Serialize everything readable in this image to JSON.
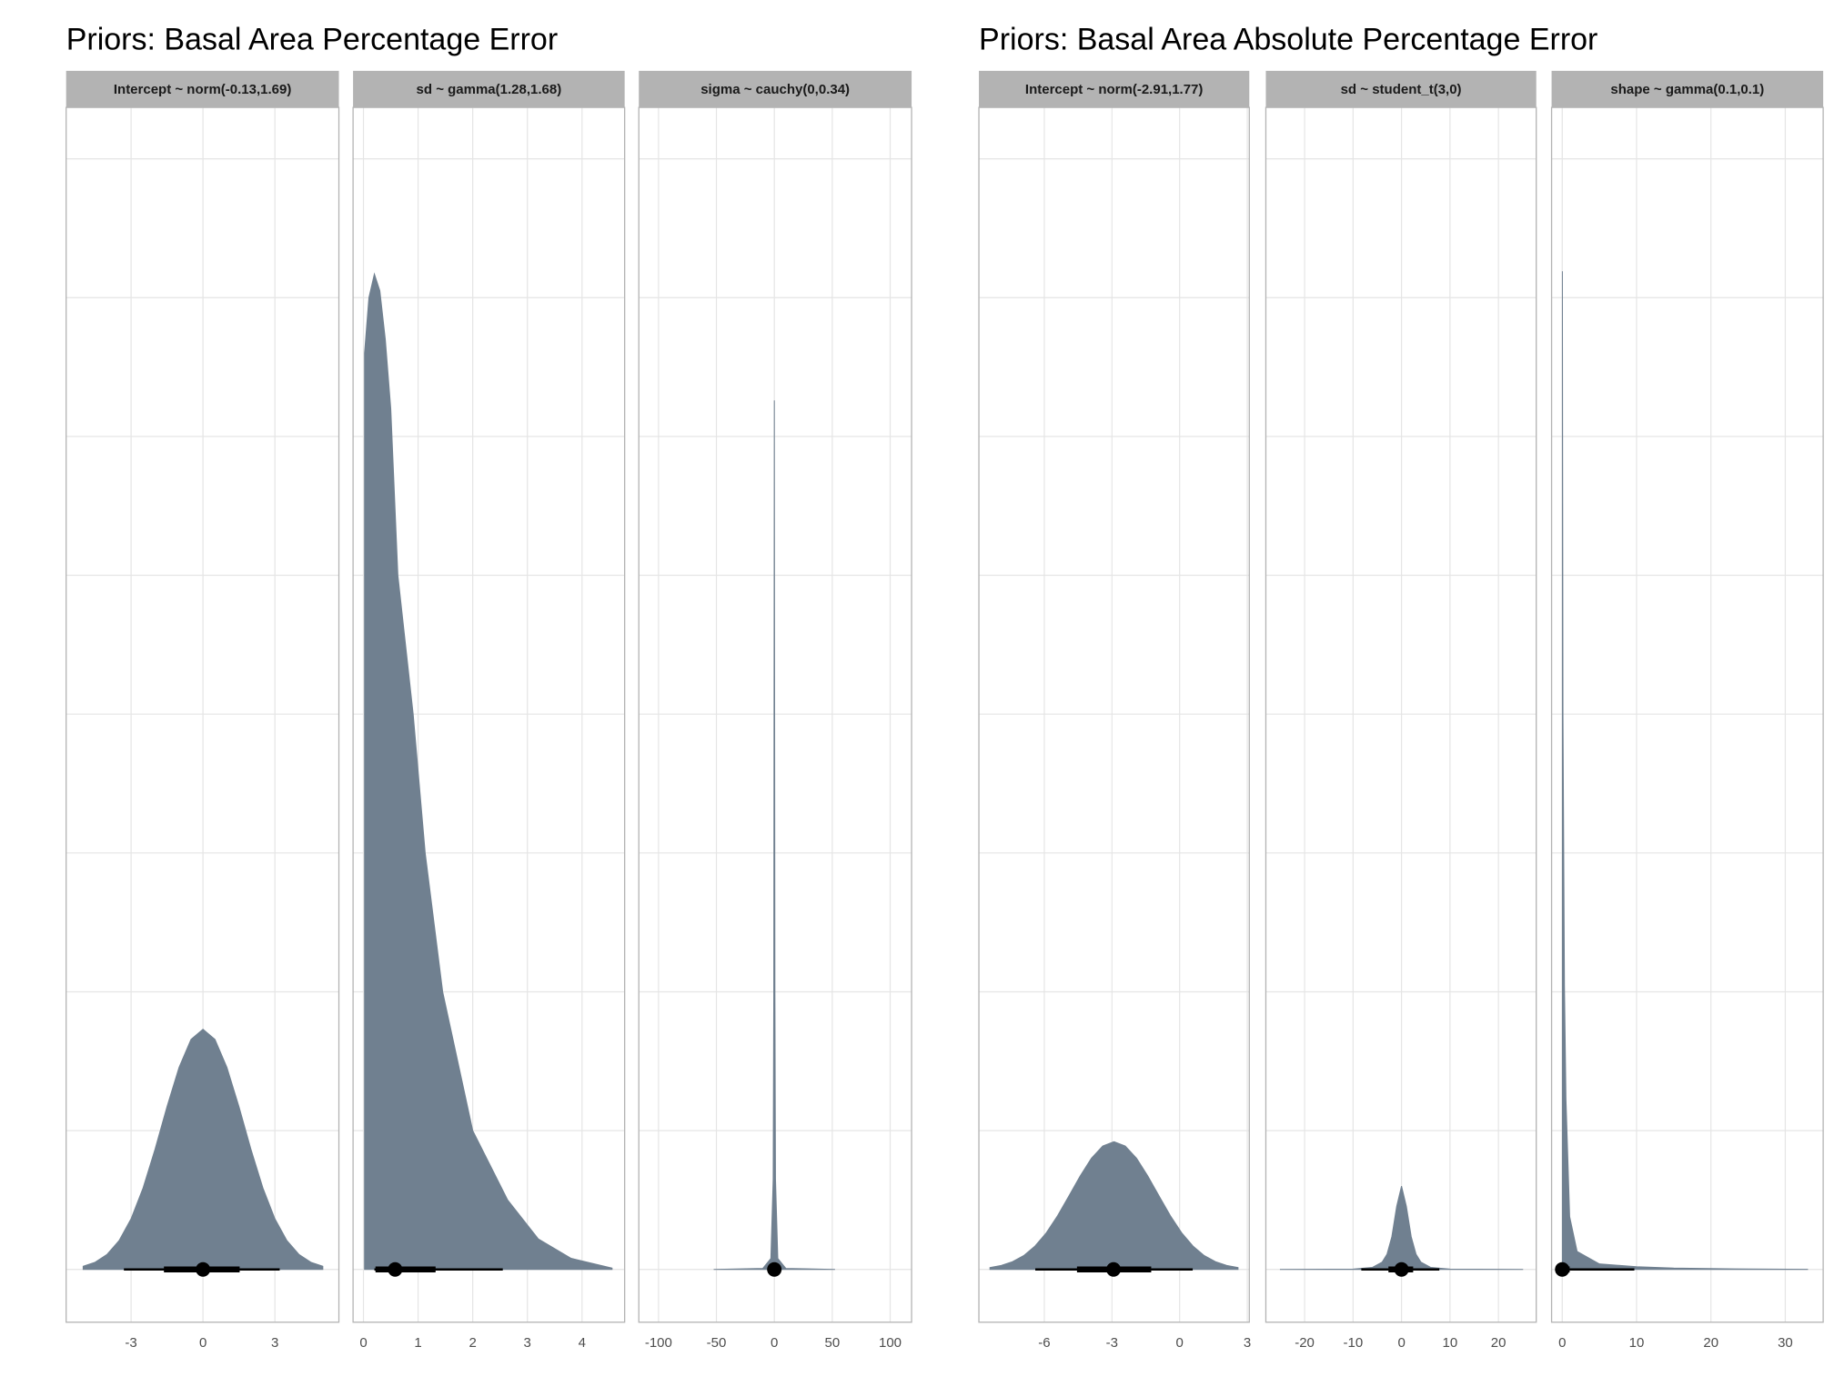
{
  "chart_data": [
    {
      "type": "density",
      "title": "Priors: Basal Area Percentage Error",
      "color": "#708090",
      "ylim": [
        -0.38,
        8.37
      ],
      "ygrid": [
        0,
        1,
        2,
        3,
        4,
        5,
        6,
        7,
        8
      ],
      "panels": [
        {
          "title": "Intercept ~ norm(-0.13,1.69)",
          "xlim": [
            -5.71,
            5.67
          ],
          "xticks": [
            -3,
            0,
            3
          ],
          "x": [
            -5,
            -4.5,
            -4,
            -3.5,
            -3,
            -2.5,
            -2,
            -1.5,
            -1,
            -0.5,
            0,
            0.5,
            1,
            1.5,
            2,
            2.5,
            3,
            3.5,
            4,
            4.5,
            5
          ],
          "values": [
            0.023,
            0.052,
            0.109,
            0.208,
            0.365,
            0.587,
            0.866,
            1.173,
            1.455,
            1.657,
            1.73,
            1.657,
            1.455,
            1.173,
            0.866,
            0.587,
            0.365,
            0.208,
            0.109,
            0.052,
            0.023
          ],
          "point": 0,
          "inner_interval": [
            -1.63,
            1.53
          ],
          "outer_interval": [
            -3.3,
            3.2
          ]
        },
        {
          "title": "sd ~ gamma(1.28,1.68)",
          "xlim": [
            -0.19,
            4.78
          ],
          "xticks": [
            0,
            1,
            2,
            3,
            4
          ],
          "x": [
            0.02,
            0.1,
            0.2,
            0.3,
            0.4,
            0.5,
            0.63,
            0.91,
            1.13,
            1.45,
            2.0,
            2.64,
            3.2,
            3.8,
            4.55
          ],
          "values": [
            6.6,
            7.0,
            7.17,
            7.05,
            6.7,
            6.2,
            5,
            4,
            3,
            2,
            1,
            0.5,
            0.22,
            0.08,
            0.01
          ],
          "point": 0.58,
          "inner_interval": [
            0.22,
            1.32
          ],
          "outer_interval": [
            0.2,
            2.55
          ]
        },
        {
          "title": "sigma ~ cauchy(0,0.34)",
          "xlim": [
            -117,
            118.5
          ],
          "xticks": [
            -100,
            -50,
            0,
            50,
            100
          ],
          "x": [
            -52,
            -10,
            -3,
            -1,
            -0.5,
            0,
            0.5,
            1,
            3,
            10,
            52
          ],
          "values": [
            0.0003,
            0.0072,
            0.079,
            0.65,
            1.98,
            6.26,
            1.98,
            0.65,
            0.079,
            0.0072,
            0.0003
          ],
          "point": 0,
          "inner_interval": [
            -0.5,
            0.5
          ],
          "outer_interval": [
            -3,
            3
          ]
        }
      ]
    },
    {
      "type": "density",
      "title": "Priors: Basal Area Absolute Percentage Error",
      "color": "#708090",
      "ylim": [
        -0.38,
        8.37
      ],
      "ygrid": [
        0,
        1,
        2,
        3,
        4,
        5,
        6,
        7,
        8
      ],
      "panels": [
        {
          "title": "Intercept ~ norm(-2.91,1.77)",
          "xlim": [
            -8.9,
            3.09
          ],
          "xticks": [
            -6,
            -3,
            0,
            3
          ],
          "x": [
            -8.41,
            -7.91,
            -7.41,
            -6.91,
            -6.41,
            -5.91,
            -5.41,
            -4.91,
            -4.41,
            -3.91,
            -3.41,
            -2.91,
            -2.41,
            -1.91,
            -1.41,
            -0.91,
            -0.41,
            0.09,
            0.59,
            1.09,
            1.59,
            2.09,
            2.59
          ],
          "values": [
            0.014,
            0.029,
            0.056,
            0.1,
            0.169,
            0.264,
            0.387,
            0.529,
            0.673,
            0.801,
            0.889,
            0.92,
            0.889,
            0.801,
            0.673,
            0.529,
            0.387,
            0.264,
            0.169,
            0.1,
            0.056,
            0.029,
            0.014
          ],
          "point": -2.93,
          "inner_interval": [
            -4.55,
            -1.26
          ],
          "outer_interval": [
            -6.4,
            0.58
          ]
        },
        {
          "title": "sd ~ student_t(3,0)",
          "xlim": [
            -28.0,
            27.8
          ],
          "xticks": [
            -20,
            -10,
            0,
            10,
            20
          ],
          "x": [
            -25,
            -10,
            -6,
            -4,
            -3,
            -2,
            -1,
            0,
            1,
            2,
            3,
            4,
            6,
            10,
            25
          ],
          "values": [
            7e-05,
            0.0024,
            0.015,
            0.053,
            0.11,
            0.236,
            0.455,
            0.6,
            0.455,
            0.236,
            0.11,
            0.053,
            0.015,
            0.0024,
            7e-05
          ],
          "point": 0,
          "inner_interval": [
            -2.7,
            2.4
          ],
          "outer_interval": [
            -8.3,
            7.8
          ]
        },
        {
          "title": "shape ~ gamma(0.1,0.1)",
          "xlim": [
            -1.43,
            35.1
          ],
          "xticks": [
            0,
            10,
            20,
            30
          ],
          "x": [
            0.02,
            0.1,
            0.3,
            0.5,
            1,
            2,
            5,
            10,
            15,
            25,
            33
          ],
          "values": [
            7.19,
            4,
            2.04,
            1.23,
            0.38,
            0.13,
            0.04,
            0.02,
            0.01,
            0.003,
            0.001
          ],
          "point": 0,
          "inner_interval": [
            0,
            1
          ],
          "outer_interval": [
            0,
            9.7
          ]
        }
      ]
    }
  ]
}
